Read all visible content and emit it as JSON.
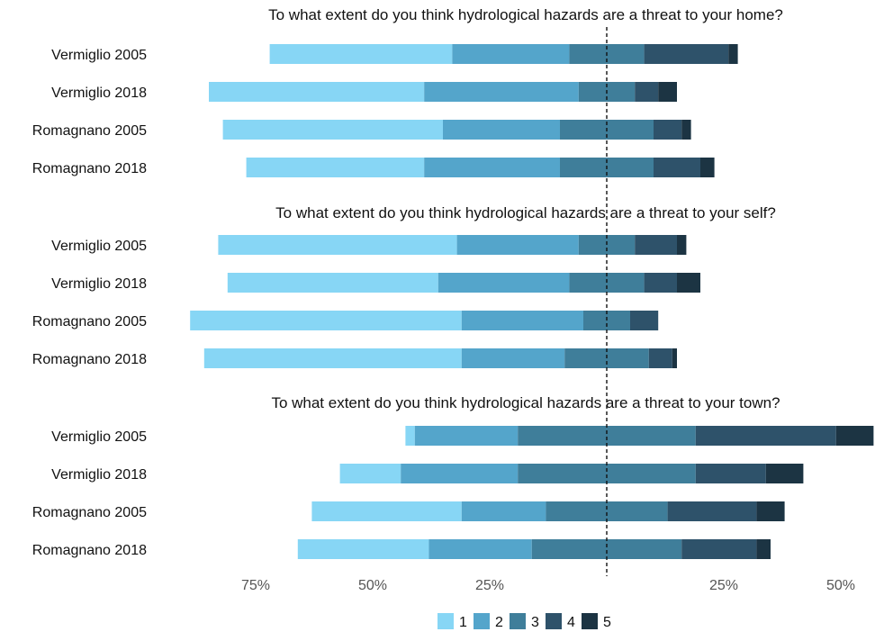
{
  "colors": {
    "1": "#87d6f5",
    "2": "#54a5cb",
    "3": "#3f7e9a",
    "4": "#2e526a",
    "5": "#1c3443"
  },
  "chart_data": {
    "type": "bar",
    "subtype": "diverging-stacked-likert",
    "center": "between levels 2 and 3",
    "x_ticks": [
      "75%",
      "50%",
      "25%",
      "25%",
      "50%"
    ],
    "x_tick_values": [
      -75,
      -50,
      -25,
      25,
      50
    ],
    "xlim": [
      -88,
      55
    ],
    "legend": {
      "position": "bottom",
      "levels": [
        "1",
        "2",
        "3",
        "4",
        "5"
      ]
    },
    "panels": [
      {
        "title": "To what extent do you think hydrological hazards are a threat to your home?",
        "rows": [
          {
            "label": "Vermiglio 2005",
            "left": [
              -72,
              -33,
              -8
            ],
            "right": [
              8,
              26,
              28
            ]
          },
          {
            "label": "Vermiglio 2018",
            "left": [
              -85,
              -39,
              -6
            ],
            "right": [
              6,
              11,
              15
            ]
          },
          {
            "label": "Romagnano 2005",
            "left": [
              -82,
              -35,
              -10
            ],
            "right": [
              10,
              16,
              18
            ]
          },
          {
            "label": "Romagnano 2018",
            "left": [
              -77,
              -39,
              -10
            ],
            "right": [
              10,
              20,
              23
            ]
          }
        ]
      },
      {
        "title": "To what extent do you think hydrological hazards are a threat to your self?",
        "rows": [
          {
            "label": "Vermiglio 2005",
            "left": [
              -83,
              -32,
              -6
            ],
            "right": [
              6,
              15,
              17
            ]
          },
          {
            "label": "Vermiglio 2018",
            "left": [
              -81,
              -36,
              -8
            ],
            "right": [
              8,
              15,
              20
            ]
          },
          {
            "label": "Romagnano 2005",
            "left": [
              -89,
              -31,
              -5
            ],
            "right": [
              5,
              11,
              11
            ]
          },
          {
            "label": "Romagnano 2018",
            "left": [
              -86,
              -31,
              -9
            ],
            "right": [
              9,
              14,
              15
            ]
          }
        ]
      },
      {
        "title": "To what extent do you think hydrological hazards are a threat to your town?",
        "rows": [
          {
            "label": "Vermiglio 2005",
            "left": [
              -43,
              -41,
              -19
            ],
            "right": [
              19,
              49,
              57
            ]
          },
          {
            "label": "Vermiglio 2018",
            "left": [
              -57,
              -44,
              -19
            ],
            "right": [
              19,
              34,
              42
            ]
          },
          {
            "label": "Romagnano 2005",
            "left": [
              -63,
              -31,
              -13
            ],
            "right": [
              13,
              32,
              38
            ]
          },
          {
            "label": "Romagnano 2018",
            "left": [
              -66,
              -38,
              -16
            ],
            "right": [
              16,
              32,
              35
            ]
          }
        ]
      }
    ]
  }
}
